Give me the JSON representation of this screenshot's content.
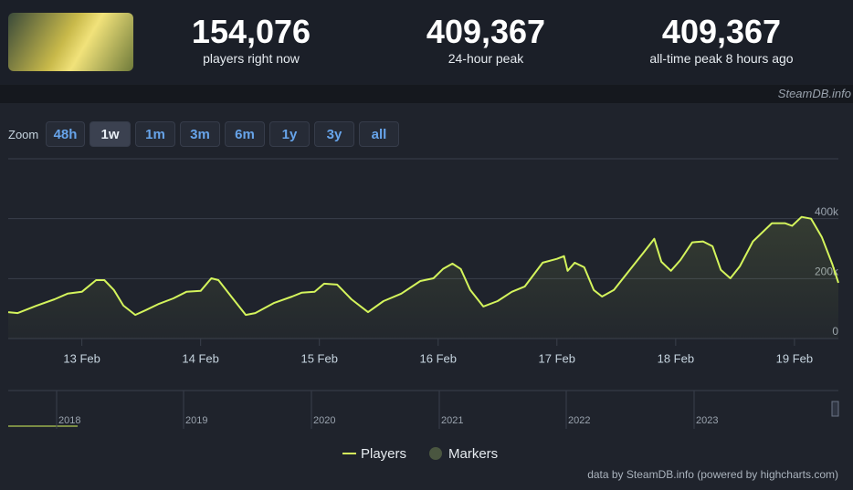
{
  "header": {
    "stats": [
      {
        "value": "154,076",
        "label": "players right now"
      },
      {
        "value": "409,367",
        "label": "24-hour peak"
      },
      {
        "value": "409,367",
        "label": "all-time peak 8 hours ago"
      }
    ],
    "watermark": "SteamDB.info"
  },
  "zoom": {
    "label": "Zoom",
    "buttons": [
      "48h",
      "1w",
      "1m",
      "3m",
      "6m",
      "1y",
      "3y",
      "all"
    ],
    "active": 1
  },
  "chart_data": {
    "type": "line",
    "x": [
      12.38,
      12.46,
      12.62,
      12.77,
      12.88,
      13.0,
      13.12,
      13.19,
      13.27,
      13.35,
      13.45,
      13.54,
      13.65,
      13.77,
      13.88,
      14.0,
      14.09,
      14.15,
      14.27,
      14.38,
      14.46,
      14.62,
      14.77,
      14.85,
      14.96,
      15.04,
      15.15,
      15.27,
      15.41,
      15.54,
      15.69,
      15.85,
      15.96,
      16.04,
      16.12,
      16.19,
      16.27,
      16.38,
      16.5,
      16.62,
      16.73,
      16.88,
      17.0,
      17.06,
      17.09,
      17.15,
      17.23,
      17.31,
      17.38,
      17.48,
      17.62,
      17.73,
      17.82,
      17.88,
      17.96,
      18.04,
      18.14,
      18.23,
      18.31,
      18.38,
      18.46,
      18.54,
      18.65,
      18.81,
      18.92,
      18.98,
      19.06,
      19.14,
      19.23,
      19.32,
      19.37
    ],
    "series": [
      {
        "name": "Players",
        "color": "#d4f45c",
        "values": [
          88000,
          85000,
          110000,
          131000,
          150000,
          156000,
          195000,
          195000,
          162000,
          110000,
          79000,
          95000,
          116000,
          134000,
          156000,
          159000,
          201000,
          195000,
          134000,
          79000,
          85000,
          119000,
          140000,
          153000,
          156000,
          183000,
          180000,
          131000,
          88000,
          125000,
          150000,
          192000,
          201000,
          232000,
          250000,
          232000,
          162000,
          107000,
          125000,
          156000,
          174000,
          253000,
          266000,
          275000,
          226000,
          253000,
          238000,
          162000,
          140000,
          162000,
          232000,
          287000,
          333000,
          256000,
          226000,
          262000,
          321000,
          324000,
          308000,
          229000,
          201000,
          241000,
          324000,
          385000,
          385000,
          376000,
          406000,
          400000,
          339000,
          247000,
          186000
        ]
      }
    ],
    "marker_legend": {
      "name": "Markers",
      "color": "#4a5640"
    },
    "xlim": [
      12.38,
      19.37
    ],
    "xticks": [
      {
        "value": 13,
        "label": "13 Feb"
      },
      {
        "value": 14,
        "label": "14 Feb"
      },
      {
        "value": 15,
        "label": "15 Feb"
      },
      {
        "value": 16,
        "label": "16 Feb"
      },
      {
        "value": 17,
        "label": "17 Feb"
      },
      {
        "value": 18,
        "label": "18 Feb"
      },
      {
        "value": 19,
        "label": "19 Feb"
      }
    ],
    "ylim": [
      0,
      600000
    ],
    "yticks": [
      0,
      {
        "value": 200000,
        "label": "200k"
      },
      {
        "value": 400000,
        "label": "400k"
      }
    ],
    "grid": true
  },
  "navigator": {
    "years": [
      "2018",
      "2019",
      "2020",
      "2021",
      "2022",
      "2023"
    ]
  },
  "credit": "data by SteamDB.info (powered by highcharts.com)"
}
